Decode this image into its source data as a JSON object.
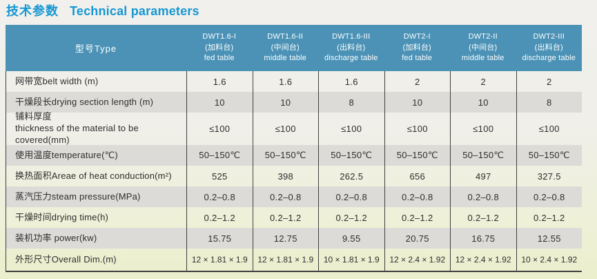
{
  "title": {
    "zh": "技术参数",
    "en": "Technical parameters"
  },
  "colors": {
    "title_blue": "#1697d3",
    "header_bg": "#4b92b6",
    "shaded_row": "#dcdbd8",
    "grid_line": "#3e3e3e",
    "page_bg_top": "#f1f0ed",
    "page_bg_bottom": "#ecefcc"
  },
  "table": {
    "corner_label": "型号Type",
    "columns": [
      {
        "model": "DWT1.6-I",
        "zh": "(加料台)",
        "en": "fed table"
      },
      {
        "model": "DWT1.6-II",
        "zh": "(中间台)",
        "en": "middle table"
      },
      {
        "model": "DWT1.6-III",
        "zh": "(出料台)",
        "en": "discharge table"
      },
      {
        "model": "DWT2-I",
        "zh": "(加料台)",
        "en": "fed table"
      },
      {
        "model": "DWT2-II",
        "zh": "(中间台)",
        "en": "middle table"
      },
      {
        "model": "DWT2-III",
        "zh": "(出料台)",
        "en": "discharge table"
      }
    ],
    "rows": [
      {
        "label": "网带宽belt width (m)",
        "values": [
          "1.6",
          "1.6",
          "1.6",
          "2",
          "2",
          "2"
        ]
      },
      {
        "label": "干燥段长drying section length (m)",
        "values": [
          "10",
          "10",
          "8",
          "10",
          "10",
          "8"
        ]
      },
      {
        "label": "铺料厚度\nthickness of the material to be covered(mm)",
        "values": [
          "≤100",
          "≤100",
          "≤100",
          "≤100",
          "≤100",
          "≤100"
        ]
      },
      {
        "label": "使用温度temperature(℃)",
        "values": [
          "50–150℃",
          "50–150℃",
          "50–150℃",
          "50–150℃",
          "50–150℃",
          "50–150℃"
        ]
      },
      {
        "label": "换热面积Areae of heat conduction(m²)",
        "values": [
          "525",
          "398",
          "262.5",
          "656",
          "497",
          "327.5"
        ]
      },
      {
        "label": "蒸汽压力steam pressure(MPa)",
        "values": [
          "0.2–0.8",
          "0.2–0.8",
          "0.2–0.8",
          "0.2–0.8",
          "0.2–0.8",
          "0.2–0.8"
        ]
      },
      {
        "label": "干燥时间drying time(h)",
        "values": [
          "0.2–1.2",
          "0.2–1.2",
          "0.2–1.2",
          "0.2–1.2",
          "0.2–1.2",
          "0.2–1.2"
        ]
      },
      {
        "label": "装机功率 power(kw)",
        "values": [
          "15.75",
          "12.75",
          "9.55",
          "20.75",
          "16.75",
          "12.55"
        ]
      },
      {
        "label": "外形尺寸Overall Dim.(m)",
        "values": [
          "12 × 1.81 × 1.9",
          "12 × 1.81 × 1.9",
          "10 × 1.81 × 1.9",
          "12 × 2.4 × 1.92",
          "12 × 2.4 × 1.92",
          "10 × 2.4 × 1.92"
        ]
      }
    ]
  }
}
